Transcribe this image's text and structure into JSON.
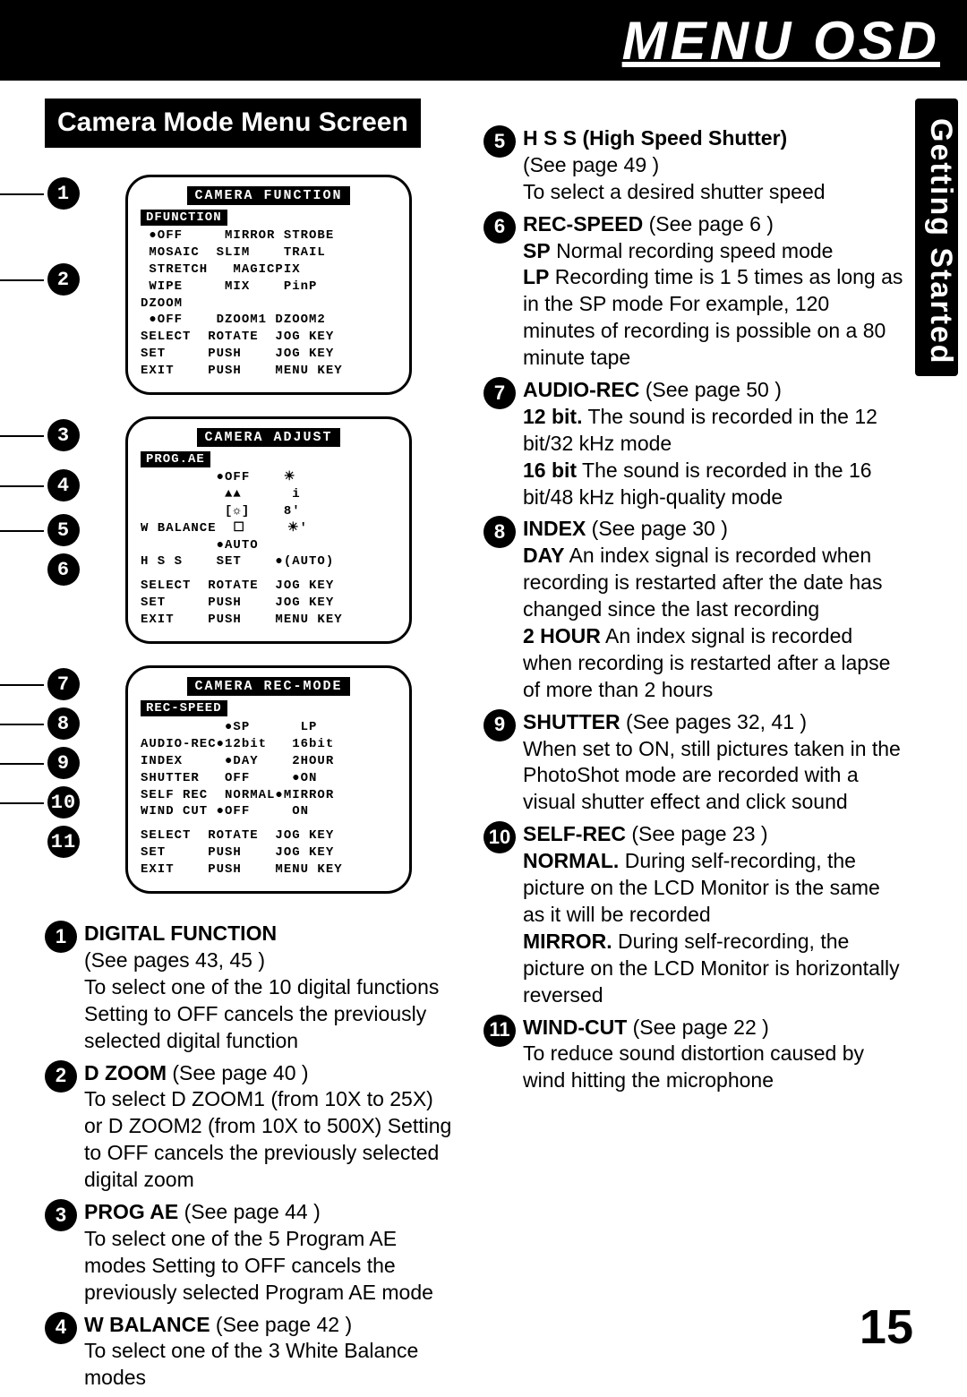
{
  "header": {
    "title": "MENU OSD"
  },
  "right_tab": "Getting Started",
  "section_title": "Camera Mode Menu Screen",
  "page_number": "15",
  "panels": {
    "function": {
      "title": "CAMERA  FUNCTION",
      "sub": "DFUNCTION",
      "rows": [
        " ●OFF     MIRROR STROBE",
        " MOSAIC  SLIM    TRAIL",
        " STRETCH   MAGICPIX",
        " WIPE     MIX    PinP",
        "DZOOM",
        " ●OFF    DZOOM1 DZOOM2",
        "SELECT  ROTATE  JOG KEY",
        "SET     PUSH    JOG KEY",
        "EXIT    PUSH    MENU KEY"
      ]
    },
    "adjust": {
      "title": "CAMERA  ADJUST",
      "sub": "PROG.AE",
      "rows": [
        "         ●OFF    ☀",
        "          ▲▲      i",
        "          [☼]    8'",
        "W BALANCE  ☐     ☀'",
        "         ●AUTO",
        "H S S    SET    ●(AUTO)",
        "",
        "SELECT  ROTATE  JOG KEY",
        "SET     PUSH    JOG KEY",
        "EXIT    PUSH    MENU KEY"
      ]
    },
    "recmode": {
      "title": "CAMERA  REC-MODE",
      "sub": "REC-SPEED",
      "rows": [
        "          ●SP      LP",
        "AUDIO-REC●12bit   16bit",
        "INDEX     ●DAY    2HOUR",
        "SHUTTER   OFF     ●ON",
        "SELF REC  NORMAL●MIRROR",
        "WIND CUT ●OFF     ON",
        "",
        "SELECT  ROTATE  JOG KEY",
        "SET     PUSH    JOG KEY",
        "EXIT    PUSH    MENU KEY"
      ]
    }
  },
  "bullets_panel1": [
    "1",
    "2"
  ],
  "bullets_panel2": [
    "3",
    "4",
    "5",
    "6"
  ],
  "bullets_panel3": [
    "7",
    "8",
    "9",
    "10",
    "11"
  ],
  "left_desc": [
    {
      "n": "1",
      "title": "DIGITAL FUNCTION",
      "body": "(See pages 43, 45 )\nTo select one of the 10 digital functions\nSetting to OFF cancels the previously selected digital function"
    },
    {
      "n": "2",
      "title": "D ZOOM",
      "ref": "(See page 40 )",
      "body": "To select D ZOOM1 (from 10X to 25X) or D ZOOM2 (from 10X to 500X) Setting to OFF cancels the previously selected digital zoom"
    },
    {
      "n": "3",
      "title": "PROG  AE",
      "ref": "(See page 44 )",
      "body": "To select one of the 5 Program AE modes  Setting to OFF cancels the previously selected Program AE mode"
    },
    {
      "n": "4",
      "title": "W BALANCE",
      "ref": "(See page 42 )",
      "body": "To select one of the 3 White Balance modes"
    }
  ],
  "right_desc": [
    {
      "n": "5",
      "title": "H  S  S  (High Speed Shutter)",
      "body": "(See page 49 )\nTo select a desired shutter speed"
    },
    {
      "n": "6",
      "title": "REC-SPEED",
      "ref": "(See page 6 )",
      "body": "<b>SP</b> Normal recording speed mode\n<b>LP</b> Recording time is 1 5 times as long as in the SP mode  For example, 120 minutes of recording is possible on a 80 minute tape"
    },
    {
      "n": "7",
      "title": "AUDIO-REC",
      "ref": "(See page 50 )",
      "body": "<b>12 bit.</b> The sound is recorded in the 12 bit/32 kHz mode\n<b>16 bit</b>  The sound is recorded in the 16 bit/48 kHz high-quality mode"
    },
    {
      "n": "8",
      "title": "INDEX",
      "ref": "(See page 30 )",
      "body": "<b>DAY</b>      An index signal is recorded when recording is restarted after the date has changed since the last recording\n<b>2 HOUR</b> An index signal is recorded when recording is restarted after a lapse of more than 2 hours"
    },
    {
      "n": "9",
      "title": "SHUTTER",
      "ref": "(See pages 32, 41 )",
      "body": "When set to ON, still pictures taken in the PhotoShot mode are recorded with a visual shutter effect and click sound"
    },
    {
      "n": "10",
      "title": "SELF-REC",
      "ref": "(See page 23 )",
      "body": "<b>NORMAL.</b>  During self-recording, the picture on the LCD Monitor is the same as it will be recorded\n<b>MIRROR.</b>  During self-recording, the picture on the LCD Monitor is horizontally reversed"
    },
    {
      "n": "11",
      "title": "WIND-CUT",
      "ref": "(See page 22 )",
      "body": "To reduce sound distortion caused by wind hitting the microphone"
    }
  ]
}
